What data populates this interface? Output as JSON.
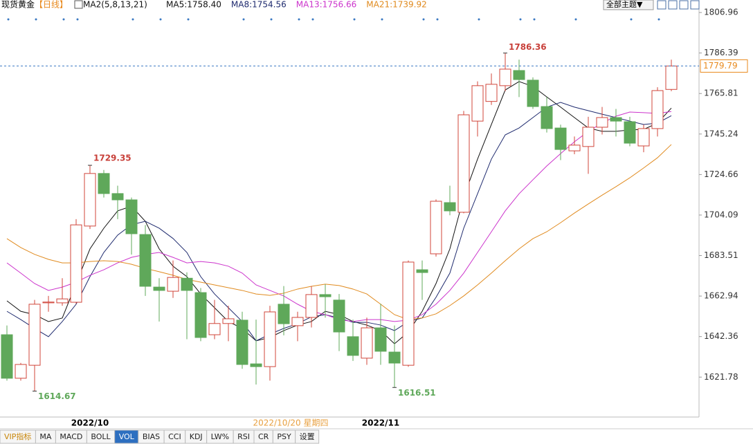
{
  "chart_data": {
    "type": "candlestick",
    "title": "现货黄金",
    "subtitle": "【日线】",
    "indicator_label": "MA2(5,8,13,21)",
    "theme_button": "全部主题▼",
    "crosshair_label": "2022/10/20 星期四",
    "categories": [
      null,
      null,
      null,
      null,
      null,
      null,
      "2022/10",
      null,
      null,
      null,
      null,
      null,
      null,
      null,
      null,
      null,
      null,
      null,
      null,
      null,
      null,
      null,
      null,
      null,
      null,
      null,
      null,
      "2022/11",
      null,
      null,
      null,
      null,
      null,
      null,
      null,
      null,
      null,
      null,
      null,
      null,
      null,
      null,
      null,
      null,
      null,
      null,
      null,
      null,
      null
    ],
    "open": [
      1643.3,
      1621.2,
      1627.8,
      1659.5,
      1659.5,
      1659.8,
      1698.5,
      1725.2,
      1715.0,
      1711.8,
      1694.2,
      1667.5,
      1665.4,
      1672.0,
      1664.7,
      1643.3,
      1649.0,
      1650.7,
      1628.5,
      1627.1,
      1658.8,
      1647.9,
      1652.1,
      1663.7,
      1660.9,
      1642.3,
      1631.4,
      1646.8,
      1634.5,
      1627.8,
      1676.3,
      1684.4,
      1710.4,
      1705.5,
      1751.8,
      1761.8,
      1769.8,
      1777.5,
      1772.6,
      1759.2,
      1748.3,
      1736.7,
      1738.9,
      1748.7,
      1753.6,
      1751.5,
      1739.2,
      1748.0,
      1767.9
    ],
    "high": [
      1648,
      1629,
      1661,
      1663,
      1672,
      1702,
      1729.35,
      1727,
      1719,
      1713,
      1699,
      1672,
      1681,
      1675,
      1667,
      1661,
      1658,
      1655,
      1651,
      1658,
      1668,
      1655,
      1668,
      1669,
      1664,
      1651,
      1652,
      1659,
      1648,
      1681,
      1681,
      1712,
      1719,
      1757,
      1772,
      1776,
      1786.36,
      1783,
      1774,
      1764,
      1750,
      1744,
      1754,
      1759,
      1758,
      1754,
      1750,
      1769,
      1783
    ],
    "low": [
      1620,
      1620,
      1614.67,
      1655,
      1658,
      1659,
      1697,
      1713,
      1702,
      1684,
      1663,
      1650,
      1662,
      1641,
      1640,
      1641,
      1640,
      1626,
      1618,
      1620,
      1643,
      1640,
      1647,
      1652,
      1635,
      1630,
      1628,
      1628,
      1616.51,
      1627,
      1661,
      1683,
      1704,
      1705,
      1744,
      1760,
      1767,
      1764,
      1758,
      1746,
      1732,
      1735,
      1725,
      1745,
      1744,
      1739,
      1736,
      1744,
      1767
    ],
    "close": [
      1621.2,
      1628.2,
      1658.8,
      1659.9,
      1661.5,
      1699.1,
      1725.2,
      1715.0,
      1711.8,
      1694.6,
      1667.9,
      1665.8,
      1672.4,
      1665.8,
      1641.9,
      1649.0,
      1651.4,
      1628.2,
      1627.1,
      1654.9,
      1648.9,
      1652.1,
      1663.7,
      1662.6,
      1644.7,
      1632.8,
      1646.8,
      1634.9,
      1628.9,
      1680.2,
      1674.9,
      1711.1,
      1706.2,
      1755.0,
      1769.8,
      1770.5,
      1778.2,
      1772.9,
      1759.2,
      1748.0,
      1737.4,
      1739.6,
      1748.7,
      1753.6,
      1751.8,
      1740.6,
      1748.0,
      1767.3,
      1779.79
    ],
    "up_color": "#d0453a",
    "down_color": "#5fa85a",
    "series": [
      {
        "name": "MA5:1758.40",
        "color": "#111111",
        "values": [
          1660.5,
          1655.2,
          1653.5,
          1650.0,
          1651.8,
          1669.3,
          1686.9,
          1697.4,
          1706.2,
          1708.6,
          1700.9,
          1686.9,
          1678.1,
          1672.8,
          1664.0,
          1657.0,
          1650.0,
          1646.5,
          1640.2,
          1641.9,
          1645.4,
          1648.2,
          1650.0,
          1655.2,
          1653.5,
          1650.0,
          1648.2,
          1645.4,
          1638.7,
          1644.7,
          1655.2,
          1669.3,
          1686.9,
          1713.2,
          1732.5,
          1750.1,
          1767.6,
          1771.9,
          1769.4,
          1764.1,
          1758.9,
          1753.6,
          1748.3,
          1746.6,
          1746.6,
          1747.3,
          1747.6,
          1750.8,
          1758.4
        ]
      },
      {
        "name": "MA8:1754.56",
        "color": "#1e2a6e",
        "values": [
          1655.2,
          1651.0,
          1646.5,
          1642.3,
          1650.0,
          1658.8,
          1672.8,
          1685.1,
          1693.9,
          1699.2,
          1700.9,
          1697.4,
          1692.2,
          1685.1,
          1672.8,
          1664.0,
          1657.0,
          1650.0,
          1640.2,
          1643.6,
          1646.5,
          1648.9,
          1652.4,
          1653.5,
          1651.8,
          1649.6,
          1649.6,
          1648.2,
          1645.4,
          1650.0,
          1651.8,
          1662.3,
          1674.6,
          1697.4,
          1714.9,
          1732.5,
          1744.8,
          1748.3,
          1753.6,
          1758.9,
          1761.3,
          1758.9,
          1757.1,
          1755.3,
          1753.6,
          1751.8,
          1750.1,
          1750.8,
          1754.56
        ]
      },
      {
        "name": "MA13:1756.66",
        "color": "#cc33cc",
        "values": [
          1679.8,
          1674.6,
          1669.3,
          1665.8,
          1667.5,
          1670.0,
          1673.5,
          1676.3,
          1679.8,
          1682.6,
          1684.1,
          1685.1,
          1682.6,
          1679.8,
          1680.5,
          1679.8,
          1678.1,
          1674.6,
          1668.6,
          1665.8,
          1663.0,
          1658.8,
          1655.2,
          1653.5,
          1651.0,
          1650.0,
          1651.0,
          1651.0,
          1650.0,
          1650.7,
          1653.5,
          1658.8,
          1665.8,
          1674.6,
          1685.1,
          1695.6,
          1706.2,
          1714.9,
          1722.0,
          1729.0,
          1735.3,
          1741.3,
          1746.6,
          1750.8,
          1754.3,
          1756.4,
          1756.1,
          1755.7,
          1756.66
        ]
      },
      {
        "name": "MA21:1739.92",
        "color": "#e08a1e",
        "values": [
          1692.1,
          1687.6,
          1684.1,
          1681.6,
          1679.8,
          1679.8,
          1680.5,
          1680.9,
          1680.5,
          1679.1,
          1677.0,
          1675.3,
          1673.5,
          1671.4,
          1670.0,
          1668.6,
          1667.2,
          1665.8,
          1664.0,
          1663.3,
          1664.4,
          1666.5,
          1667.9,
          1669.0,
          1668.3,
          1666.5,
          1664.0,
          1658.8,
          1653.5,
          1651.0,
          1651.8,
          1653.9,
          1658.1,
          1663.0,
          1668.6,
          1674.6,
          1680.9,
          1686.9,
          1692.1,
          1695.6,
          1700.2,
          1705.1,
          1709.7,
          1714.2,
          1718.5,
          1723.0,
          1728.0,
          1733.2,
          1739.92
        ]
      }
    ],
    "last_price": 1779.79,
    "ylim": [
      1601.5,
      1809.8
    ],
    "yticks": [
      1806.96,
      1786.39,
      1765.81,
      1745.24,
      1724.66,
      1704.09,
      1683.51,
      1662.94,
      1642.36,
      1621.78
    ],
    "tabs": [
      "VIP指标",
      "MA",
      "MACD",
      "BOLL",
      "VOL",
      "BIAS",
      "CCI",
      "KDJ",
      "LW%",
      "RSI",
      "CR",
      "PSY",
      "设置"
    ]
  }
}
